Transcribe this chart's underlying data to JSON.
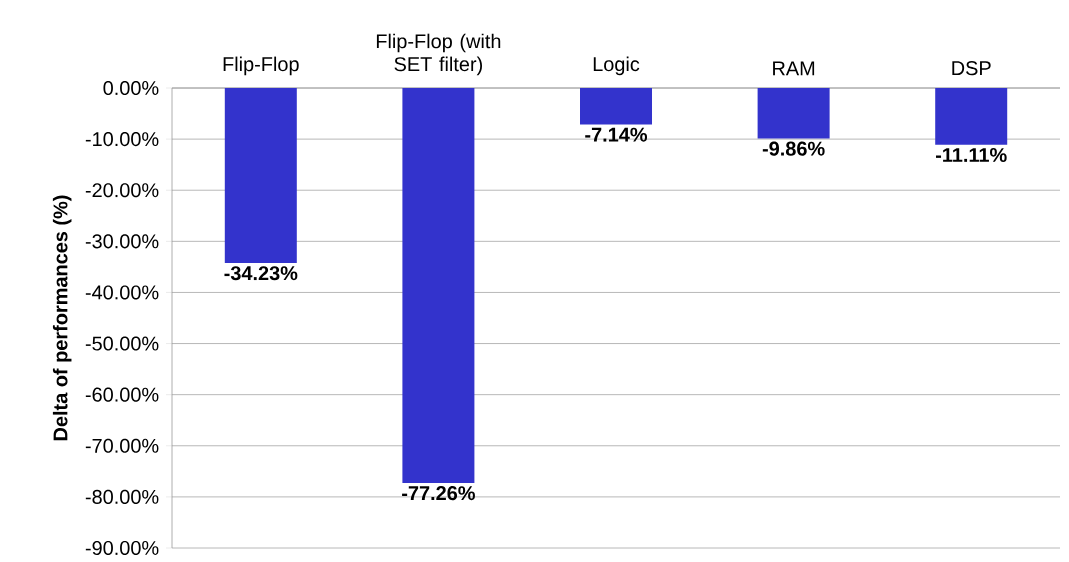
{
  "chart_data": {
    "type": "bar",
    "ylabel": "Delta of performances (%)",
    "categories": [
      "Flip-Flop",
      "Flip-Flop (with SET filter)",
      "Logic",
      "RAM",
      "DSP"
    ],
    "values": [
      -34.23,
      -77.26,
      -7.14,
      -9.86,
      -11.11
    ],
    "value_labels": [
      "-34.23%",
      "-77.26%",
      "-7.14%",
      "-9.86%",
      "-11.11%"
    ],
    "color": "#3333cc",
    "ylim": [
      -90,
      0
    ],
    "yticks": [
      {
        "value": 0,
        "label": "0.00%"
      },
      {
        "value": -10,
        "label": "-10.00%"
      },
      {
        "value": -20,
        "label": "-20.00%"
      },
      {
        "value": -30,
        "label": "-30.00%"
      },
      {
        "value": -40,
        "label": "-40.00%"
      },
      {
        "value": -50,
        "label": "-50.00%"
      },
      {
        "value": -60,
        "label": "-60.00%"
      },
      {
        "value": -70,
        "label": "-70.00%"
      },
      {
        "value": -80,
        "label": "-80.00%"
      },
      {
        "value": -90,
        "label": "-90.00%"
      }
    ],
    "grid": "y"
  }
}
